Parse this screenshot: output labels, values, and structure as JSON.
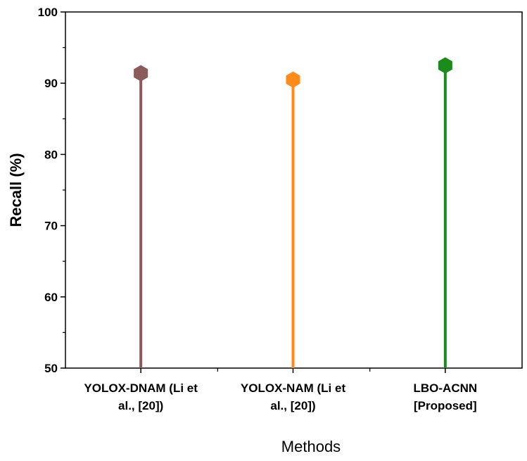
{
  "chart_data": {
    "type": "lollipop",
    "title": "",
    "xlabel": "Methods",
    "ylabel": "Recall (%)",
    "ylim": [
      50,
      100
    ],
    "yticks": [
      50,
      60,
      70,
      80,
      90,
      100
    ],
    "categories": [
      [
        "YOLOX-DNAM (Li et",
        "al., [20])"
      ],
      [
        "YOLOX-NAM (Li et",
        "al., [20])"
      ],
      [
        "LBO-ACNN",
        "[Proposed]"
      ]
    ],
    "values": [
      91.4,
      90.5,
      92.5
    ],
    "colors": [
      "#8b5a5a",
      "#ff8c1a",
      "#1a8c1a"
    ],
    "marker": "hexagon",
    "grid": false,
    "legend": "none"
  }
}
